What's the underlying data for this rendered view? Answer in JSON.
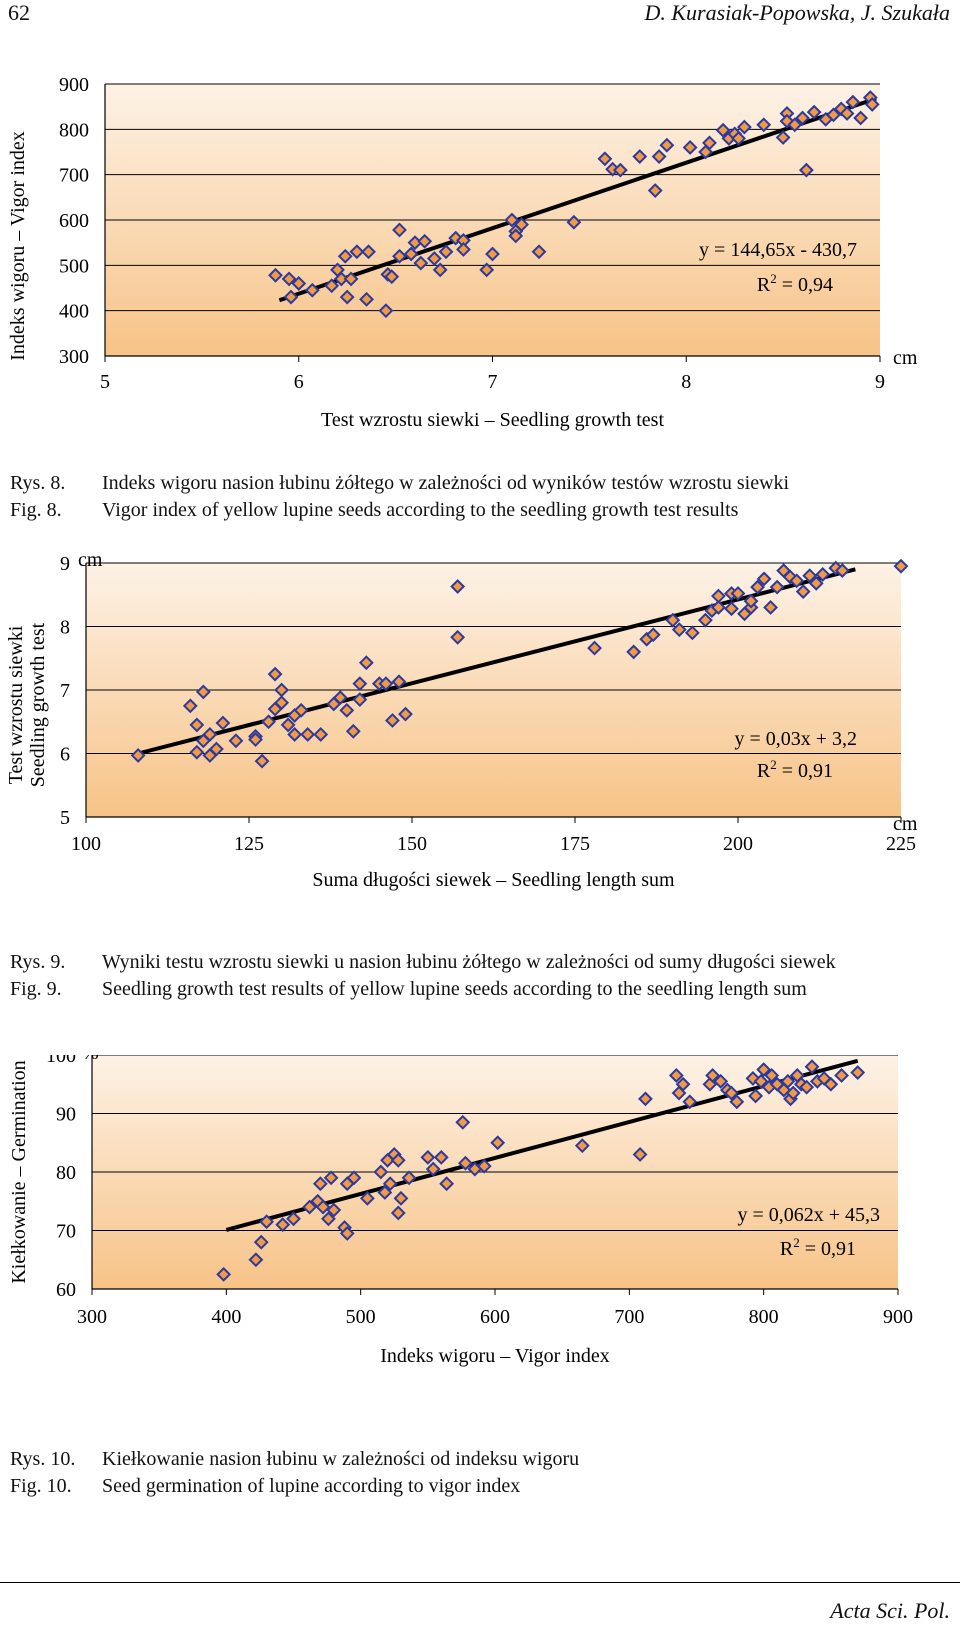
{
  "header": {
    "page_number": "62",
    "authors": "D. Kurasiak-Popowska, J. Szukała"
  },
  "footer": {
    "journal": "Acta Sci. Pol."
  },
  "colors": {
    "plot_top": "#fdf2e6",
    "plot_bottom": "#f7c387",
    "marker_fill": "#f29a43",
    "marker_stroke": "#2b3aa0",
    "line": "#000000"
  },
  "captions": [
    {
      "pl_label": "Rys. 8.",
      "pl_text": "Indeks wigoru nasion łubinu żółtego w zależności od wyników testów wzrostu siewki",
      "en_label": "Fig. 8.",
      "en_text": "Vigor index of yellow lupine seeds according to the seedling growth test results"
    },
    {
      "pl_label": "Rys. 9.",
      "pl_text": "Wyniki testu wzrostu siewki u nasion łubinu żółtego w zależności od sumy długości siewek",
      "en_label": "Fig. 9.",
      "en_text": "Seedling growth test results of yellow lupine seeds according to the seedling length sum"
    },
    {
      "pl_label": "Rys. 10.",
      "pl_text": "Kiełkowanie nasion łubinu w zależności od indeksu wigoru",
      "en_label": "Fig. 10.",
      "en_text": "Seed germination of lupine according to vigor index"
    }
  ],
  "chart_data": [
    {
      "type": "scatter",
      "xlabel": "Test wzrostu siewki – Seedling growth test",
      "ylabel": "Indeks wigoru – Vigor index",
      "x_unit": "cm",
      "y_unit": "",
      "xlim": [
        5,
        9
      ],
      "ylim": [
        300,
        900
      ],
      "xticks": [
        5,
        6,
        7,
        8,
        9
      ],
      "yticks": [
        300,
        400,
        500,
        600,
        700,
        800,
        900
      ],
      "equation": "y = 144,65x - 430,7",
      "r2_prefix": "R",
      "r2_exp": "2",
      "r2_value": " = 0,94",
      "trend": {
        "x": [
          5.9,
          8.98
        ],
        "y": [
          423,
          868
        ]
      },
      "points": [
        [
          5.88,
          478
        ],
        [
          5.95,
          470
        ],
        [
          5.96,
          430
        ],
        [
          6.0,
          460
        ],
        [
          6.07,
          445
        ],
        [
          6.17,
          455
        ],
        [
          6.2,
          490
        ],
        [
          6.22,
          470
        ],
        [
          6.24,
          520
        ],
        [
          6.25,
          430
        ],
        [
          6.27,
          470
        ],
        [
          6.3,
          530
        ],
        [
          6.35,
          425
        ],
        [
          6.36,
          530
        ],
        [
          6.45,
          400
        ],
        [
          6.46,
          480
        ],
        [
          6.48,
          475
        ],
        [
          6.52,
          520
        ],
        [
          6.52,
          578
        ],
        [
          6.58,
          525
        ],
        [
          6.6,
          550
        ],
        [
          6.63,
          505
        ],
        [
          6.65,
          553
        ],
        [
          6.7,
          515
        ],
        [
          6.73,
          490
        ],
        [
          6.76,
          530
        ],
        [
          6.81,
          560
        ],
        [
          6.85,
          555
        ],
        [
          6.85,
          535
        ],
        [
          6.97,
          490
        ],
        [
          7.0,
          525
        ],
        [
          7.1,
          600
        ],
        [
          7.12,
          575
        ],
        [
          7.12,
          565
        ],
        [
          7.15,
          590
        ],
        [
          7.24,
          530
        ],
        [
          7.42,
          595
        ],
        [
          7.58,
          735
        ],
        [
          7.62,
          712
        ],
        [
          7.66,
          710
        ],
        [
          7.76,
          740
        ],
        [
          7.84,
          665
        ],
        [
          7.86,
          740
        ],
        [
          7.9,
          765
        ],
        [
          8.02,
          760
        ],
        [
          8.1,
          750
        ],
        [
          8.12,
          770
        ],
        [
          8.19,
          798
        ],
        [
          8.22,
          780
        ],
        [
          8.25,
          790
        ],
        [
          8.27,
          780
        ],
        [
          8.3,
          805
        ],
        [
          8.4,
          810
        ],
        [
          8.5,
          782
        ],
        [
          8.52,
          835
        ],
        [
          8.52,
          818
        ],
        [
          8.56,
          810
        ],
        [
          8.6,
          825
        ],
        [
          8.62,
          710
        ],
        [
          8.66,
          838
        ],
        [
          8.72,
          822
        ],
        [
          8.76,
          832
        ],
        [
          8.8,
          845
        ],
        [
          8.83,
          835
        ],
        [
          8.86,
          860
        ],
        [
          8.9,
          825
        ],
        [
          8.95,
          870
        ],
        [
          8.96,
          855
        ]
      ]
    },
    {
      "type": "scatter",
      "xlabel": "Suma długości siewek – Seedling length sum",
      "ylabel": "Test wzrostu siewki Seedling growth test",
      "ylabel_lines": [
        "Test wzrostu siewki",
        "Seedling growth test"
      ],
      "x_unit": "cm",
      "y_unit": "cm",
      "xlim": [
        100,
        225
      ],
      "ylim": [
        5,
        9
      ],
      "xticks": [
        100,
        125,
        150,
        175,
        200,
        225
      ],
      "yticks": [
        5,
        6,
        7,
        8,
        9
      ],
      "equation": "y = 0,03x + 3,2",
      "r2_prefix": "R",
      "r2_exp": "2",
      "r2_value": " = 0,91",
      "trend": {
        "x": [
          108,
          218
        ],
        "y": [
          6.0,
          8.9
        ]
      },
      "points": [
        [
          108,
          5.97
        ],
        [
          116,
          6.75
        ],
        [
          117,
          6.45
        ],
        [
          117,
          6.02
        ],
        [
          118,
          6.2
        ],
        [
          118,
          6.97
        ],
        [
          119,
          5.97
        ],
        [
          119,
          6.3
        ],
        [
          120,
          6.07
        ],
        [
          121,
          6.48
        ],
        [
          123,
          6.2
        ],
        [
          126,
          6.27
        ],
        [
          126,
          6.22
        ],
        [
          127,
          5.88
        ],
        [
          128,
          6.5
        ],
        [
          129,
          6.7
        ],
        [
          129,
          7.25
        ],
        [
          130,
          7.0
        ],
        [
          130,
          6.8
        ],
        [
          131,
          6.45
        ],
        [
          132,
          6.3
        ],
        [
          132,
          6.6
        ],
        [
          133,
          6.68
        ],
        [
          134,
          6.3
        ],
        [
          136,
          6.3
        ],
        [
          138,
          6.78
        ],
        [
          139,
          6.88
        ],
        [
          140,
          6.68
        ],
        [
          141,
          6.35
        ],
        [
          142,
          6.85
        ],
        [
          142,
          7.1
        ],
        [
          143,
          7.43
        ],
        [
          145,
          7.1
        ],
        [
          146,
          7.1
        ],
        [
          147,
          6.52
        ],
        [
          148,
          7.13
        ],
        [
          149,
          6.62
        ],
        [
          157,
          8.63
        ],
        [
          157,
          7.83
        ],
        [
          178,
          7.66
        ],
        [
          184,
          7.6
        ],
        [
          186,
          7.8
        ],
        [
          187,
          7.87
        ],
        [
          190,
          8.1
        ],
        [
          191,
          7.95
        ],
        [
          193,
          7.9
        ],
        [
          195,
          8.1
        ],
        [
          196,
          8.25
        ],
        [
          197,
          8.3
        ],
        [
          197,
          8.48
        ],
        [
          199,
          8.28
        ],
        [
          199,
          8.52
        ],
        [
          200,
          8.52
        ],
        [
          201,
          8.2
        ],
        [
          202,
          8.3
        ],
        [
          202,
          8.4
        ],
        [
          203,
          8.62
        ],
        [
          204,
          8.75
        ],
        [
          205,
          8.3
        ],
        [
          206,
          8.62
        ],
        [
          207,
          8.88
        ],
        [
          208,
          8.78
        ],
        [
          209,
          8.72
        ],
        [
          210,
          8.55
        ],
        [
          211,
          8.8
        ],
        [
          212,
          8.68
        ],
        [
          213,
          8.82
        ],
        [
          215,
          8.92
        ],
        [
          216,
          8.88
        ],
        [
          225,
          8.95
        ]
      ]
    },
    {
      "type": "scatter",
      "xlabel": "Indeks wigoru – Vigor index",
      "ylabel": "Kiełkowanie – Germination",
      "x_unit": "",
      "y_unit": "%",
      "xlim": [
        300,
        900
      ],
      "ylim": [
        60,
        100
      ],
      "xticks": [
        300,
        400,
        500,
        600,
        700,
        800,
        900
      ],
      "yticks": [
        60,
        70,
        80,
        90,
        100
      ],
      "equation": "y = 0,062x + 45,3",
      "r2_prefix": "R",
      "r2_exp": "2",
      "r2_value": " = 0,91",
      "trend": {
        "x": [
          400,
          870
        ],
        "y": [
          70.1,
          99.0
        ]
      },
      "points": [
        [
          398,
          62.5
        ],
        [
          422,
          65
        ],
        [
          426,
          68
        ],
        [
          430,
          71.5
        ],
        [
          442,
          71
        ],
        [
          450,
          72
        ],
        [
          462,
          74
        ],
        [
          468,
          75
        ],
        [
          470,
          78
        ],
        [
          472,
          74
        ],
        [
          476,
          72
        ],
        [
          478,
          79
        ],
        [
          480,
          73.5
        ],
        [
          488,
          70.5
        ],
        [
          490,
          69.5
        ],
        [
          490,
          78
        ],
        [
          495,
          79
        ],
        [
          505,
          75.5
        ],
        [
          515,
          80
        ],
        [
          518,
          76.5
        ],
        [
          520,
          82
        ],
        [
          522,
          78
        ],
        [
          525,
          83
        ],
        [
          528,
          82
        ],
        [
          528,
          73
        ],
        [
          530,
          75.5
        ],
        [
          536,
          79
        ],
        [
          550,
          82.5
        ],
        [
          554,
          80.5
        ],
        [
          560,
          82.5
        ],
        [
          564,
          78
        ],
        [
          576,
          88.5
        ],
        [
          578,
          81.5
        ],
        [
          585,
          80.5
        ],
        [
          592,
          81
        ],
        [
          602,
          85
        ],
        [
          665,
          84.5
        ],
        [
          708,
          83
        ],
        [
          712,
          92.5
        ],
        [
          735,
          96.5
        ],
        [
          737,
          93.5
        ],
        [
          740,
          95
        ],
        [
          745,
          92
        ],
        [
          760,
          95
        ],
        [
          762,
          96.5
        ],
        [
          768,
          95.5
        ],
        [
          773,
          94
        ],
        [
          776,
          93.5
        ],
        [
          780,
          92
        ],
        [
          792,
          96
        ],
        [
          794,
          93
        ],
        [
          798,
          95.5
        ],
        [
          800,
          97.5
        ],
        [
          804,
          94.5
        ],
        [
          806,
          96.5
        ],
        [
          810,
          95
        ],
        [
          815,
          94
        ],
        [
          818,
          95.5
        ],
        [
          820,
          92.5
        ],
        [
          822,
          93.5
        ],
        [
          825,
          96.5
        ],
        [
          828,
          95
        ],
        [
          832,
          94.5
        ],
        [
          836,
          98
        ],
        [
          840,
          95.5
        ],
        [
          845,
          96
        ],
        [
          850,
          95
        ],
        [
          858,
          96.5
        ],
        [
          870,
          97
        ]
      ]
    }
  ]
}
